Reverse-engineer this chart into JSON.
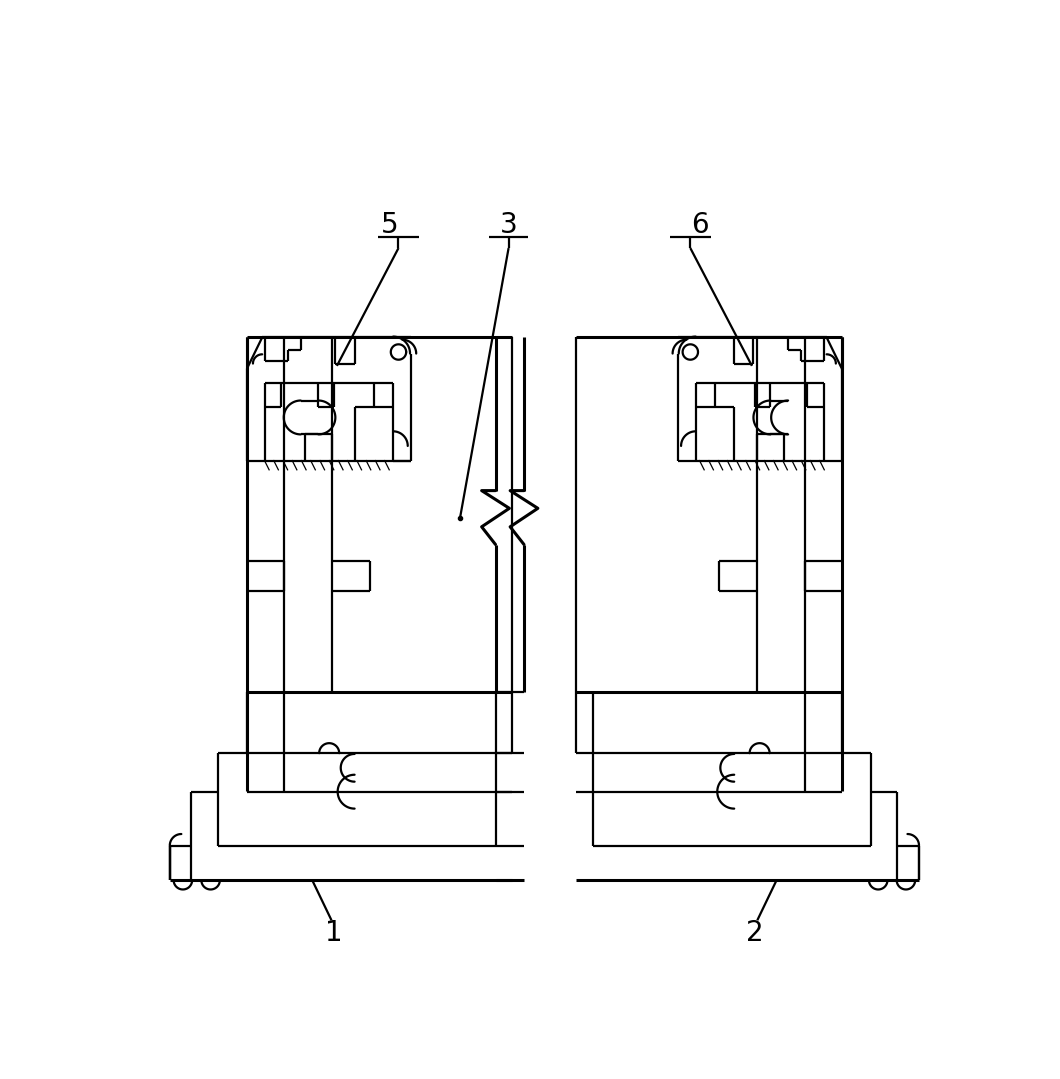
{
  "bg": "#ffffff",
  "lc": "#000000",
  "lw": 1.6,
  "lw2": 2.2,
  "fig_w": 10.6,
  "fig_h": 10.79,
  "label_fs": 20,
  "xlim": [
    0,
    10.6
  ],
  "ylim": [
    0,
    10.79
  ]
}
